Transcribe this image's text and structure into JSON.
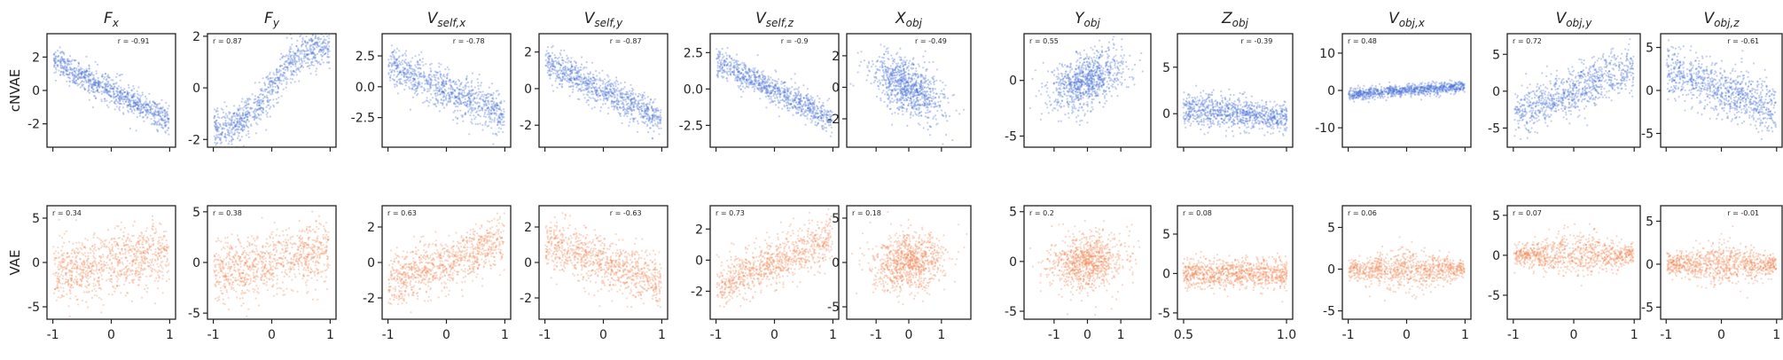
{
  "chart_data": {
    "type": "scatter",
    "rows": [
      {
        "label": "cNVAE",
        "color": "#4a72d8"
      },
      {
        "label": "VAE",
        "color": "#f08a5a"
      }
    ],
    "x_ticks": [
      {
        "values": [
          -1,
          0,
          1
        ],
        "labels": [
          "-1",
          "0",
          "1"
        ]
      },
      {
        "values": [
          -1,
          0,
          1
        ],
        "labels": [
          "-1",
          "0",
          "1"
        ]
      },
      {
        "values": [
          -1,
          0,
          1
        ],
        "labels": [
          "-1",
          "0",
          "1"
        ]
      },
      {
        "values": [
          -1,
          0,
          1
        ],
        "labels": [
          "-1",
          "0",
          "1"
        ]
      },
      {
        "values": [
          -1,
          0,
          1
        ],
        "labels": [
          "-1",
          "0",
          "1"
        ]
      },
      {
        "values": [
          -1,
          0,
          1
        ],
        "labels": [
          "-1",
          "0",
          "1"
        ]
      },
      {
        "values": [
          -1,
          0,
          1
        ],
        "labels": [
          "-1",
          "0",
          "1"
        ]
      },
      {
        "values": [
          0.5,
          1.0
        ],
        "labels": [
          "0.5",
          "1.0"
        ]
      },
      {
        "values": [
          -1,
          0,
          1
        ],
        "labels": [
          "-1",
          "0",
          "1"
        ]
      },
      {
        "values": [
          -1,
          0,
          1
        ],
        "labels": [
          "-1",
          "0",
          "1"
        ]
      },
      {
        "values": [
          -1,
          0,
          1
        ],
        "labels": [
          "-1",
          "0",
          "1"
        ]
      }
    ],
    "panels": [
      {
        "title_base": "F",
        "title_sub": "x",
        "xlim": [
          -1.1,
          1.1
        ],
        "cnvae": {
          "r_label": "r = -0.91",
          "r": -0.91,
          "ylim": [
            -3.4,
            3.4
          ],
          "yticks": [
            -2,
            0,
            2
          ],
          "mode": "linear",
          "r_pos": "top-right"
        },
        "vae": {
          "r_label": "r = 0.34",
          "r": 0.34,
          "ylim": [
            -6.4,
            6.4
          ],
          "yticks": [
            -5,
            0,
            5
          ],
          "mode": "linear",
          "r_pos": "top-left"
        }
      },
      {
        "title_base": "F",
        "title_sub": "y",
        "xlim": [
          -1.1,
          1.1
        ],
        "cnvae": {
          "r_label": "r = 0.87",
          "r": 0.87,
          "ylim": [
            -2.3,
            2.1
          ],
          "yticks": [
            -2,
            0,
            2
          ],
          "mode": "sigmoid",
          "r_pos": "top-left"
        },
        "vae": {
          "r_label": "r = 0.38",
          "r": 0.38,
          "ylim": [
            -5.6,
            5.6
          ],
          "yticks": [
            -5,
            0,
            5
          ],
          "mode": "linear",
          "r_pos": "top-left"
        }
      },
      {
        "title_base": "V",
        "title_sub": "self,x",
        "xlim": [
          -1.1,
          1.1
        ],
        "cnvae": {
          "r_label": "r = -0.78",
          "r": -0.78,
          "ylim": [
            -4.9,
            4.3
          ],
          "yticks": [
            -2.5,
            0.0,
            2.5
          ],
          "ytick_labels": [
            "-2.5",
            "0.0",
            "2.5"
          ],
          "mode": "linear",
          "r_pos": "top-right"
        },
        "vae": {
          "r_label": "r = 0.63",
          "r": 0.63,
          "ylim": [
            -3.2,
            3.2
          ],
          "yticks": [
            -2,
            0,
            2
          ],
          "mode": "linear",
          "r_pos": "top-left"
        }
      },
      {
        "title_base": "V",
        "title_sub": "self,y",
        "xlim": [
          -1.1,
          1.1
        ],
        "cnvae": {
          "r_label": "r = -0.87",
          "r": -0.87,
          "ylim": [
            -3.2,
            3.0
          ],
          "yticks": [
            -2,
            0,
            2
          ],
          "mode": "linear",
          "r_pos": "top-right"
        },
        "vae": {
          "r_label": "r = -0.63",
          "r": -0.63,
          "ylim": [
            -3.2,
            3.2
          ],
          "yticks": [
            -2,
            0,
            2
          ],
          "mode": "linear",
          "r_pos": "top-right"
        }
      },
      {
        "title_base": "V",
        "title_sub": "self,z",
        "xlim": [
          -1.1,
          1.1
        ],
        "cnvae": {
          "r_label": "r = -0.9",
          "r": -0.9,
          "ylim": [
            -4.0,
            3.8
          ],
          "yticks": [
            -2.5,
            0.0,
            2.5
          ],
          "ytick_labels": [
            "-2.5",
            "0.0",
            "2.5"
          ],
          "mode": "linear",
          "r_pos": "top-right"
        },
        "vae": {
          "r_label": "r = 0.73",
          "r": 0.73,
          "ylim": [
            -3.8,
            3.5
          ],
          "yticks": [
            -2,
            0,
            2
          ],
          "mode": "linear",
          "r_pos": "top-left"
        }
      },
      {
        "title_base": "X",
        "title_sub": "obj",
        "xlim": [
          -1.9,
          1.9
        ],
        "cnvae": {
          "r_label": "r = -0.49",
          "r": -0.49,
          "ylim": [
            -3.8,
            3.4
          ],
          "yticks": [
            -2,
            0,
            2
          ],
          "mode": "blob",
          "r_pos": "top-right"
        },
        "vae": {
          "r_label": "r = 0.18",
          "r": 0.18,
          "ylim": [
            -6.4,
            6.4
          ],
          "yticks": [
            -5,
            0,
            5
          ],
          "mode": "blob",
          "r_pos": "top-left"
        }
      },
      {
        "title_base": "Y",
        "title_sub": "obj",
        "xlim": [
          -1.9,
          1.9
        ],
        "cnvae": {
          "r_label": "r = 0.55",
          "r": 0.55,
          "ylim": [
            -6.0,
            4.2
          ],
          "yticks": [
            -5,
            0
          ],
          "mode": "blob",
          "r_pos": "top-left"
        },
        "vae": {
          "r_label": "r = 0.2",
          "r": 0.2,
          "ylim": [
            -5.8,
            5.6
          ],
          "yticks": [
            -5,
            0,
            5
          ],
          "mode": "blob",
          "r_pos": "top-left"
        }
      },
      {
        "title_base": "Z",
        "title_sub": "obj",
        "xlim": [
          0.47,
          1.03
        ],
        "cnvae": {
          "r_label": "r = -0.39",
          "r": -0.39,
          "ylim": [
            -3.6,
            8.6
          ],
          "yticks": [
            0,
            5
          ],
          "mode": "band",
          "r_pos": "top-right"
        },
        "vae": {
          "r_label": "r = 0.08",
          "r": 0.08,
          "ylim": [
            -5.8,
            8.6
          ],
          "yticks": [
            -5,
            0,
            5
          ],
          "mode": "band",
          "r_pos": "top-left"
        }
      },
      {
        "title_base": "V",
        "title_sub": "obj,x",
        "xlim": [
          -1.1,
          1.1
        ],
        "cnvae": {
          "r_label": "r = 0.48",
          "r": 0.48,
          "ylim": [
            -15.2,
            15.2
          ],
          "yticks": [
            -10,
            0,
            10
          ],
          "mode": "narrow",
          "r_pos": "top-left"
        },
        "vae": {
          "r_label": "r = 0.06",
          "r": 0.06,
          "ylim": [
            -6.0,
            7.6
          ],
          "yticks": [
            -5,
            0,
            5
          ],
          "mode": "diamond",
          "r_pos": "top-left"
        }
      },
      {
        "title_base": "V",
        "title_sub": "obj,y",
        "xlim": [
          -1.1,
          1.1
        ],
        "cnvae": {
          "r_label": "r = 0.72",
          "r": 0.72,
          "ylim": [
            -7.6,
            7.8
          ],
          "yticks": [
            -5,
            0,
            5
          ],
          "mode": "linear",
          "r_pos": "top-left"
        },
        "vae": {
          "r_label": "r = 0.07",
          "r": 0.07,
          "ylim": [
            -8.0,
            6.2
          ],
          "yticks": [
            -5,
            0,
            5
          ],
          "mode": "diamond",
          "r_pos": "top-left"
        }
      },
      {
        "title_base": "V",
        "title_sub": "obj,z",
        "xlim": [
          -1.1,
          1.1
        ],
        "cnvae": {
          "r_label": "r = -0.61",
          "r": -0.61,
          "ylim": [
            -6.6,
            6.6
          ],
          "yticks": [
            -5,
            0,
            5
          ],
          "mode": "linear",
          "r_pos": "top-right"
        },
        "vae": {
          "r_label": "r = -0.01",
          "r": -0.01,
          "ylim": [
            -6.4,
            6.8
          ],
          "yticks": [
            -5,
            0,
            5
          ],
          "mode": "diamond",
          "r_pos": "top-right"
        }
      }
    ]
  }
}
